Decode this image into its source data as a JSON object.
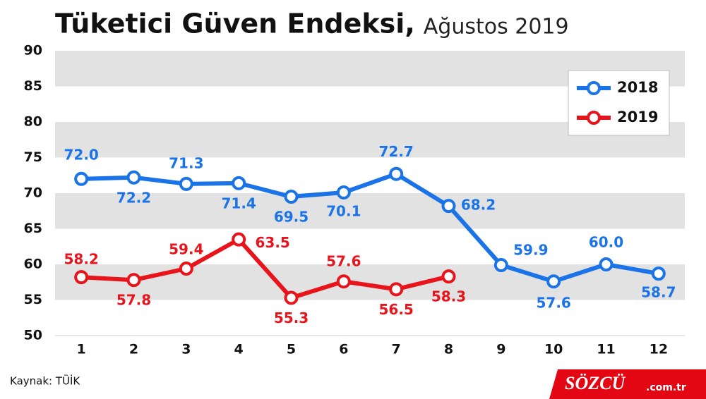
{
  "chart_data": {
    "type": "line",
    "title": "Tüketici Güven Endeksi,",
    "subtitle": "Ağustos 2019",
    "categories": [
      1,
      2,
      3,
      4,
      5,
      6,
      7,
      8,
      9,
      10,
      11,
      12
    ],
    "series": [
      {
        "name": "2018",
        "color": "#1a74e8",
        "values": [
          72.0,
          72.2,
          71.3,
          71.4,
          69.5,
          70.1,
          72.7,
          68.2,
          59.9,
          57.6,
          60.0,
          58.7
        ],
        "value_labels": [
          "72.0",
          "72.2",
          "71.3",
          "71.4",
          "69.5",
          "70.1",
          "72.7",
          "68.2",
          "59.9",
          "57.6",
          "60.0",
          "58.7"
        ]
      },
      {
        "name": "2019",
        "color": "#e8141c",
        "values": [
          58.2,
          57.8,
          59.4,
          63.5,
          55.3,
          57.6,
          56.5,
          58.3,
          null,
          null,
          null,
          null
        ],
        "value_labels": [
          "58.2",
          "57.8",
          "59.4",
          "63.5",
          "55.3",
          "57.6",
          "56.5",
          "58.3",
          null,
          null,
          null,
          null
        ]
      }
    ],
    "ylim": [
      50,
      90
    ],
    "yticks": [
      50,
      55,
      60,
      65,
      70,
      75,
      80,
      85,
      90
    ],
    "grid": "bands",
    "legend": "top-right",
    "source": "Kaynak: TÜİK",
    "brand": "SÖZCÜ",
    "brand_domain": ".com.tr"
  }
}
